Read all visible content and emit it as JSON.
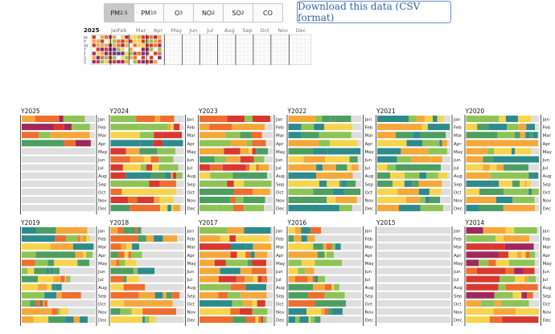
{
  "tabs": [
    {
      "base": "PM",
      "sub": "2.5",
      "active": true
    },
    {
      "base": "PM",
      "sub": "10",
      "active": false
    },
    {
      "base": "O",
      "sub": "3",
      "active": false
    },
    {
      "base": "NO",
      "sub": "2",
      "active": false
    },
    {
      "base": "SO",
      "sub": "2",
      "active": false
    },
    {
      "base": "CO",
      "sub": "",
      "active": false
    }
  ],
  "download_label": "Download this data (CSV format)",
  "calendar": {
    "year": "2025",
    "months": [
      "Jan",
      "Feb",
      "Mar",
      "Apr",
      "May",
      "Jun",
      "Jul",
      "Aug",
      "Sep",
      "Oct",
      "Nov",
      "Dec"
    ],
    "weekdays": [
      "M",
      "T",
      "W",
      "T",
      "F",
      "S",
      "S"
    ]
  },
  "month_labels": [
    "Jan",
    "Feb",
    "Mar",
    "Apr",
    "May",
    "Jun",
    "Jul",
    "Aug",
    "Sep",
    "Oct",
    "Nov",
    "Dec"
  ],
  "aqi_colors": {
    "good": "#2e8b8b",
    "fair": "#4e9e62",
    "moderate": "#8ec456",
    "sensitive": "#f7d44c",
    "poor": "#f5a83a",
    "unhealthy": "#ee6e2e",
    "very_unhealthy": "#d9382f",
    "hazardous": "#a0285a",
    "purple": "#6b2f8f",
    "nodata": "#dedede"
  },
  "years": [
    {
      "label": "Y2025",
      "profile": "recent",
      "months_with_data": 4
    },
    {
      "label": "Y2024",
      "profile": "mixed",
      "months_with_data": 12
    },
    {
      "label": "Y2023",
      "profile": "polluted",
      "months_with_data": 12
    },
    {
      "label": "Y2022",
      "profile": "clean",
      "months_with_data": 12
    },
    {
      "label": "Y2021",
      "profile": "clean",
      "months_with_data": 12
    },
    {
      "label": "Y2020",
      "profile": "clean",
      "months_with_data": 12
    },
    {
      "label": "Y2019",
      "profile": "sparse_late",
      "months_with_data": 12
    },
    {
      "label": "Y2018",
      "profile": "sparse_mixed",
      "months_with_data": 12
    },
    {
      "label": "Y2017",
      "profile": "mixed",
      "months_with_data": 12
    },
    {
      "label": "Y2016",
      "profile": "sparse_mixed",
      "months_with_data": 12
    },
    {
      "label": "Y2015",
      "profile": "empty",
      "months_with_data": 0
    },
    {
      "label": "Y2014",
      "profile": "polluted_late",
      "months_with_data": 12
    }
  ]
}
